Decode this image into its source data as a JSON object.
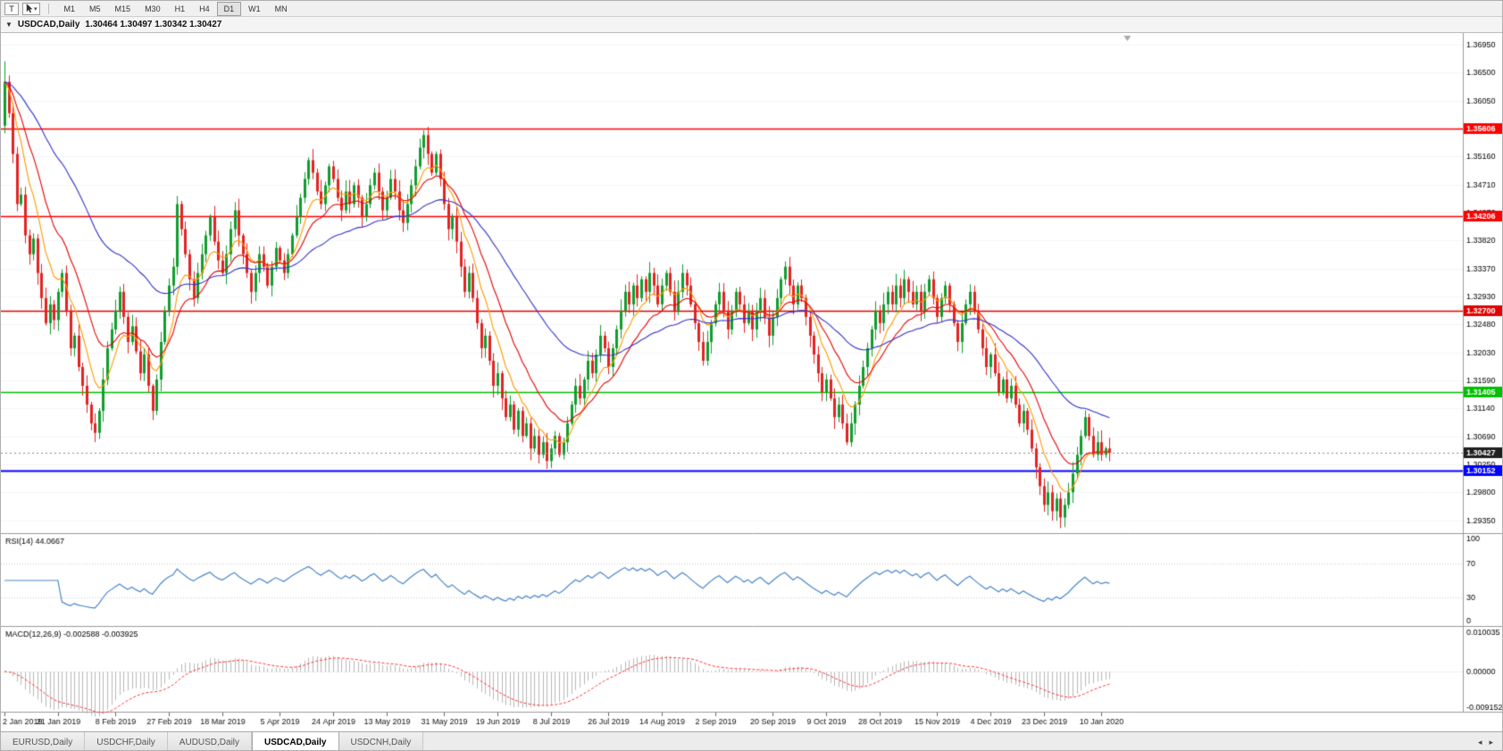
{
  "toolbar": {
    "t_button": "T",
    "timeframes": [
      "M1",
      "M5",
      "M15",
      "M30",
      "H1",
      "H4",
      "D1",
      "W1",
      "MN"
    ],
    "active_timeframe": "D1"
  },
  "chart": {
    "title": "USDCAD,Daily",
    "quote": "1.30464 1.30497 1.30342 1.30427"
  },
  "rsi": {
    "label": "RSI(14)",
    "value": "44.0667",
    "levels": [
      100,
      70,
      30,
      0
    ]
  },
  "macd": {
    "label": "MACD(12,26,9)",
    "values": "-0.002588 -0.003925",
    "axis": [
      "0.010035",
      "0.00000",
      "-0.009152"
    ]
  },
  "tabs": {
    "items": [
      "EURUSD,Daily",
      "USDCHF,Daily",
      "AUDUSD,Daily",
      "USDCAD,Daily",
      "USDCNH,Daily"
    ],
    "active": "USDCAD,Daily"
  },
  "colors": {
    "up": "#0f9d2e",
    "down": "#e32222",
    "grid": "#e3e3e3",
    "rsi_line": "#4a86c8",
    "macd_hist": "#b8b8b8",
    "macd_signal": "#ff3333",
    "axis_text": "#000000",
    "panel_border": "#9a9a9a",
    "current_badge": "#1f1f1f"
  },
  "chart_data": {
    "type": "candlestick",
    "symbol": "USDCAD",
    "timeframe": "Daily",
    "ohlc_display": {
      "open": "1.30464",
      "high": "1.30497",
      "low": "1.30342",
      "close": "1.30427"
    },
    "y_ticks": [
      1.3695,
      1.365,
      1.3605,
      1.3561,
      1.3516,
      1.3471,
      1.3427,
      1.3382,
      1.3337,
      1.3293,
      1.3248,
      1.3203,
      1.3159,
      1.3114,
      1.3069,
      1.3025,
      1.298,
      1.2935
    ],
    "y_range": [
      1.2915,
      1.371
    ],
    "x_labels": [
      {
        "label": "2 Jan 2019",
        "i": 0
      },
      {
        "label": "21 Jan 2019",
        "i": 13
      },
      {
        "label": "8 Feb 2019",
        "i": 27
      },
      {
        "label": "27 Feb 2019",
        "i": 40
      },
      {
        "label": "18 Mar 2019",
        "i": 53
      },
      {
        "label": "5 Apr 2019",
        "i": 67
      },
      {
        "label": "24 Apr 2019",
        "i": 80
      },
      {
        "label": "13 May 2019",
        "i": 93
      },
      {
        "label": "31 May 2019",
        "i": 107
      },
      {
        "label": "19 Jun 2019",
        "i": 120
      },
      {
        "label": "8 Jul 2019",
        "i": 133
      },
      {
        "label": "26 Jul 2019",
        "i": 147
      },
      {
        "label": "14 Aug 2019",
        "i": 160
      },
      {
        "label": "2 Sep 2019",
        "i": 173
      },
      {
        "label": "20 Sep 2019",
        "i": 187
      },
      {
        "label": "9 Oct 2019",
        "i": 200
      },
      {
        "label": "28 Oct 2019",
        "i": 213
      },
      {
        "label": "15 Nov 2019",
        "i": 227
      },
      {
        "label": "4 Dec 2019",
        "i": 240
      },
      {
        "label": "23 Dec 2019",
        "i": 253
      },
      {
        "label": "10 Jan 2020",
        "i": 267
      }
    ],
    "horizontal_lines": [
      {
        "value": 1.35606,
        "label": "1.35606",
        "color": "#ff0000",
        "width": 1.5
      },
      {
        "value": 1.34206,
        "label": "1.34206",
        "color": "#ff0000",
        "width": 1.5
      },
      {
        "value": 1.327,
        "label": "1.32700",
        "color": "#e00000",
        "width": 1.5
      },
      {
        "value": 1.31405,
        "label": "1.31405",
        "color": "#00c000",
        "width": 1.5
      },
      {
        "value": 1.30152,
        "label": "1.30152",
        "color": "#0000ff",
        "width": 2
      }
    ],
    "current_price": {
      "value": 1.30427,
      "label": "1.30427"
    },
    "first_open": 1.3565,
    "closes": [
      1.3635,
      1.3585,
      1.352,
      1.344,
      1.3455,
      1.339,
      1.336,
      1.3385,
      1.333,
      1.329,
      1.325,
      1.328,
      1.3255,
      1.33,
      1.333,
      1.327,
      1.321,
      1.323,
      1.318,
      1.315,
      1.312,
      1.309,
      1.3075,
      1.311,
      1.316,
      1.321,
      1.324,
      1.327,
      1.33,
      1.326,
      1.322,
      1.3245,
      1.3205,
      1.317,
      1.32,
      1.315,
      1.311,
      1.316,
      1.322,
      1.327,
      1.331,
      1.334,
      1.344,
      1.34,
      1.336,
      1.332,
      1.329,
      1.333,
      1.336,
      1.339,
      1.342,
      1.338,
      1.335,
      1.333,
      1.336,
      1.34,
      1.343,
      1.339,
      1.336,
      1.333,
      1.33,
      1.333,
      1.336,
      1.334,
      1.331,
      1.334,
      1.337,
      1.335,
      1.333,
      1.336,
      1.339,
      1.342,
      1.345,
      1.348,
      1.351,
      1.349,
      1.346,
      1.344,
      1.347,
      1.35,
      1.348,
      1.345,
      1.343,
      1.346,
      1.344,
      1.347,
      1.345,
      1.342,
      1.344,
      1.347,
      1.349,
      1.346,
      1.343,
      1.345,
      1.348,
      1.346,
      1.343,
      1.341,
      1.344,
      1.347,
      1.35,
      1.353,
      1.355,
      1.352,
      1.349,
      1.352,
      1.348,
      1.344,
      1.34,
      1.342,
      1.338,
      1.334,
      1.33,
      1.333,
      1.329,
      1.325,
      1.321,
      1.323,
      1.319,
      1.315,
      1.317,
      1.313,
      1.31,
      1.312,
      1.308,
      1.311,
      1.307,
      1.309,
      1.305,
      1.307,
      1.304,
      1.306,
      1.303,
      1.305,
      1.307,
      1.304,
      1.306,
      1.309,
      1.312,
      1.315,
      1.313,
      1.316,
      1.319,
      1.317,
      1.32,
      1.323,
      1.321,
      1.318,
      1.321,
      1.324,
      1.327,
      1.33,
      1.328,
      1.331,
      1.329,
      1.332,
      1.33,
      1.333,
      1.331,
      1.328,
      1.331,
      1.333,
      1.33,
      1.327,
      1.33,
      1.333,
      1.331,
      1.328,
      1.325,
      1.322,
      1.319,
      1.322,
      1.325,
      1.328,
      1.33,
      1.327,
      1.324,
      1.327,
      1.33,
      1.328,
      1.325,
      1.327,
      1.324,
      1.327,
      1.329,
      1.326,
      1.323,
      1.326,
      1.329,
      1.332,
      1.334,
      1.331,
      1.328,
      1.331,
      1.329,
      1.326,
      1.323,
      1.32,
      1.317,
      1.314,
      1.316,
      1.313,
      1.31,
      1.312,
      1.309,
      1.306,
      1.309,
      1.312,
      1.315,
      1.318,
      1.321,
      1.324,
      1.327,
      1.325,
      1.328,
      1.33,
      1.328,
      1.331,
      1.329,
      1.332,
      1.33,
      1.328,
      1.33,
      1.327,
      1.33,
      1.332,
      1.329,
      1.326,
      1.329,
      1.331,
      1.328,
      1.325,
      1.322,
      1.325,
      1.328,
      1.33,
      1.327,
      1.324,
      1.321,
      1.318,
      1.32,
      1.317,
      1.314,
      1.316,
      1.313,
      1.315,
      1.312,
      1.309,
      1.311,
      1.308,
      1.305,
      1.302,
      1.299,
      1.296,
      1.298,
      1.295,
      1.297,
      1.294,
      1.296,
      1.298,
      1.301,
      1.304,
      1.307,
      1.31,
      1.307,
      1.304,
      1.306,
      1.304,
      1.305,
      1.3043
    ],
    "moving_averages": [
      {
        "period": 8,
        "type": "ema",
        "color": "#ff9900"
      },
      {
        "period": 16,
        "type": "ema",
        "color": "#e60000"
      },
      {
        "period": 45,
        "type": "ema",
        "color": "#3333cc"
      }
    ],
    "rsi_period": 14,
    "macd_params": {
      "fast": 12,
      "slow": 26,
      "signal": 9,
      "ylim": [
        -0.009152,
        0.010035
      ]
    }
  }
}
